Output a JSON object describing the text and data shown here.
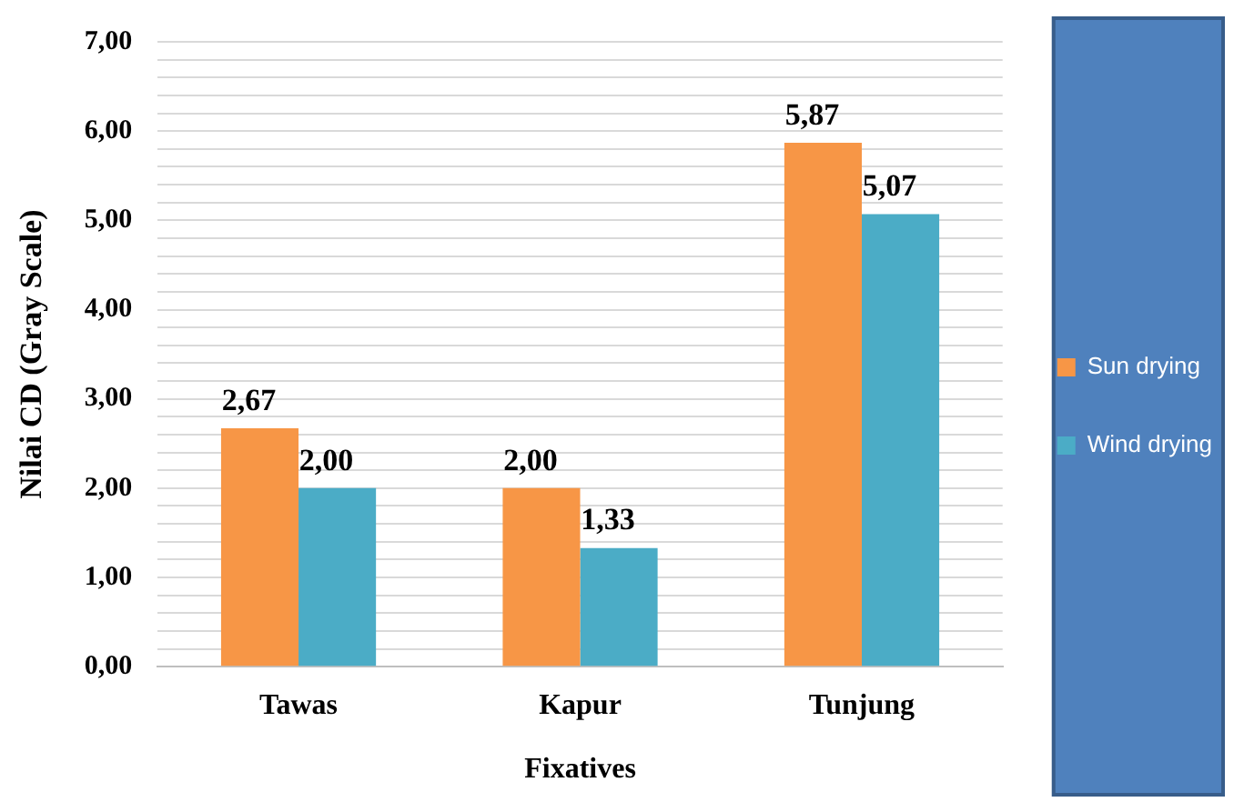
{
  "chart_data": {
    "type": "bar",
    "xlabel": "Fixatives",
    "ylabel": "Nilai CD (Gray Scale)",
    "categories": [
      "Tawas",
      "Kapur",
      "Tunjung"
    ],
    "series": [
      {
        "name": "Sun drying",
        "color": "#f79646",
        "values": [
          2.67,
          2.0,
          5.87
        ],
        "value_labels": [
          "2,67",
          "2,00",
          "5,87"
        ]
      },
      {
        "name": "Wind drying",
        "color": "#4bacc6",
        "values": [
          2.0,
          1.33,
          5.07
        ],
        "value_labels": [
          "2,00",
          "1,33",
          "5,07"
        ]
      }
    ],
    "ylim": [
      0,
      7
    ],
    "yticks": [
      {
        "value": 0,
        "label": "0,00"
      },
      {
        "value": 0.2,
        "label": null
      },
      {
        "value": 0.4,
        "label": null
      },
      {
        "value": 0.6,
        "label": null
      },
      {
        "value": 0.8,
        "label": null
      },
      {
        "value": 1,
        "label": "1,00"
      },
      {
        "value": 1.2,
        "label": null
      },
      {
        "value": 1.4,
        "label": null
      },
      {
        "value": 1.6,
        "label": null
      },
      {
        "value": 1.8,
        "label": null
      },
      {
        "value": 2,
        "label": "2,00"
      },
      {
        "value": 2.2,
        "label": null
      },
      {
        "value": 2.4,
        "label": null
      },
      {
        "value": 2.6,
        "label": null
      },
      {
        "value": 2.8,
        "label": null
      },
      {
        "value": 3,
        "label": "3,00"
      },
      {
        "value": 3.2,
        "label": null
      },
      {
        "value": 3.4,
        "label": null
      },
      {
        "value": 3.6,
        "label": null
      },
      {
        "value": 3.8,
        "label": null
      },
      {
        "value": 4,
        "label": "4,00"
      },
      {
        "value": 4.2,
        "label": null
      },
      {
        "value": 4.4,
        "label": null
      },
      {
        "value": 4.6,
        "label": null
      },
      {
        "value": 4.8,
        "label": null
      },
      {
        "value": 5,
        "label": "5,00"
      },
      {
        "value": 5.2,
        "label": null
      },
      {
        "value": 5.4,
        "label": null
      },
      {
        "value": 5.6,
        "label": null
      },
      {
        "value": 5.8,
        "label": null
      },
      {
        "value": 6,
        "label": "6,00"
      },
      {
        "value": 6.2,
        "label": null
      },
      {
        "value": 6.4,
        "label": null
      },
      {
        "value": 6.6,
        "label": null
      },
      {
        "value": 6.8,
        "label": null
      },
      {
        "value": 7,
        "label": "7,00"
      }
    ],
    "grid": "y",
    "legend": "right"
  }
}
